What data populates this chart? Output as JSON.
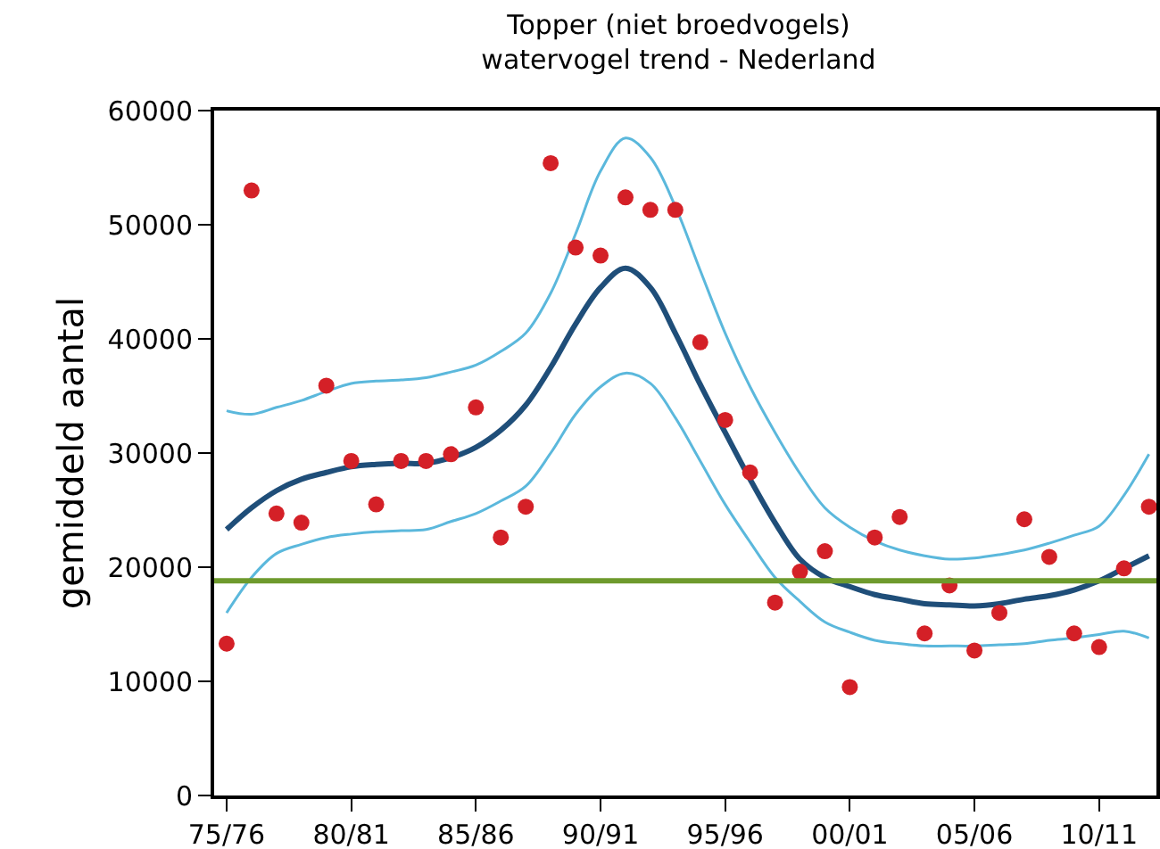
{
  "chart_data": {
    "type": "scatter",
    "title": "Topper (niet broedvogels)",
    "subtitle": "watervogel trend - Nederland",
    "ylabel": "gemiddeld aantal",
    "categories": [
      "75/76",
      null,
      null,
      null,
      null,
      "80/81",
      null,
      null,
      null,
      null,
      "85/86",
      null,
      null,
      null,
      null,
      "90/91",
      null,
      null,
      null,
      null,
      "95/96",
      null,
      null,
      null,
      null,
      "00/01",
      null,
      null,
      null,
      null,
      "05/06",
      null,
      null,
      null,
      null,
      "10/11",
      null,
      null
    ],
    "series": [
      {
        "color": "#d42027",
        "marker": "circle",
        "values": [
          13300,
          53000,
          24700,
          23900,
          35900,
          29300,
          25500,
          29300,
          29300,
          29900,
          34000,
          22600,
          25300,
          55400,
          48000,
          47300,
          52400,
          51300,
          51300,
          39700,
          32900,
          28300,
          16900,
          19600,
          21400,
          9500,
          22600,
          24400,
          14200,
          18400,
          12700,
          16000,
          24200,
          20900,
          14200,
          13000,
          19900,
          25300
        ]
      },
      {
        "type": "line",
        "color": "#5bb8dc",
        "values": [
          33700,
          33400,
          34000,
          34600,
          35400,
          36100,
          36300,
          36400,
          36600,
          37100,
          37700,
          38900,
          40500,
          44000,
          49200,
          54700,
          57600,
          55900,
          51600,
          46000,
          40500,
          35800,
          31800,
          28200,
          25200,
          23500,
          22300,
          21500,
          21000,
          20700,
          20800,
          21100,
          21500,
          22100,
          22800,
          23600,
          26300,
          29900
        ]
      },
      {
        "type": "line",
        "color": "#5bb8dc",
        "values": [
          16000,
          19100,
          21200,
          22000,
          22600,
          22900,
          23100,
          23200,
          23300,
          24000,
          24700,
          25800,
          27100,
          30000,
          33400,
          35800,
          37000,
          36100,
          33100,
          29300,
          25500,
          22200,
          19100,
          17000,
          15200,
          14300,
          13600,
          13300,
          13100,
          13100,
          13100,
          13200,
          13300,
          13600,
          13800,
          14100,
          14400,
          13800
        ]
      },
      {
        "type": "line",
        "color": "#1f4e79",
        "values": [
          23300,
          25200,
          26700,
          27700,
          28300,
          28800,
          29000,
          29100,
          29100,
          29600,
          30500,
          32000,
          34200,
          37500,
          41300,
          44500,
          46200,
          44500,
          40500,
          36000,
          31800,
          27700,
          23900,
          20700,
          19100,
          18300,
          17600,
          17200,
          16800,
          16700,
          16600,
          16800,
          17200,
          17500,
          18000,
          18800,
          19900,
          21000
        ]
      }
    ],
    "ref_lines": [
      {
        "axis": "y",
        "value": 18800,
        "color": "#6e9a2d",
        "line_style": "solid"
      }
    ],
    "ylim": [
      0,
      60000
    ],
    "yticks": [
      0,
      10000,
      20000,
      30000,
      40000,
      50000,
      60000
    ],
    "grid": false,
    "line_style": "solid"
  }
}
